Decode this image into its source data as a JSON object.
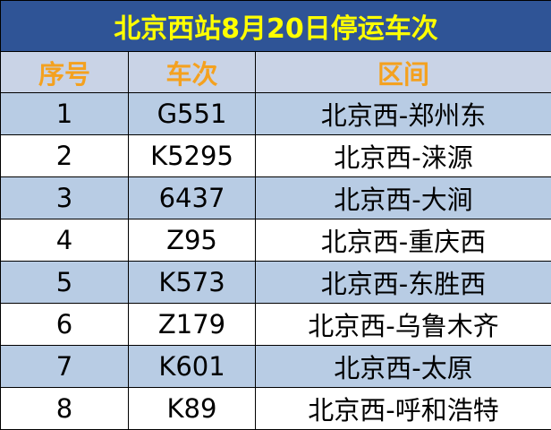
{
  "title": "北京西站8月20日停运车次",
  "table": {
    "header": [
      "序号",
      "车次",
      "区间"
    ],
    "rows": [
      [
        "1",
        "G551",
        "北京西-郑州东"
      ],
      [
        "2",
        "K5295",
        "北京西-涞源"
      ],
      [
        "3",
        "6437",
        "北京西-大涧"
      ],
      [
        "4",
        "Z95",
        "北京西-重庆西"
      ],
      [
        "5",
        "K573",
        "北京西-东胜西"
      ],
      [
        "6",
        "Z179",
        "北京西-乌鲁木齐"
      ],
      [
        "7",
        "K601",
        "北京西-太原"
      ],
      [
        "8",
        "K89",
        "北京西-呼和浩特"
      ]
    ]
  }
}
